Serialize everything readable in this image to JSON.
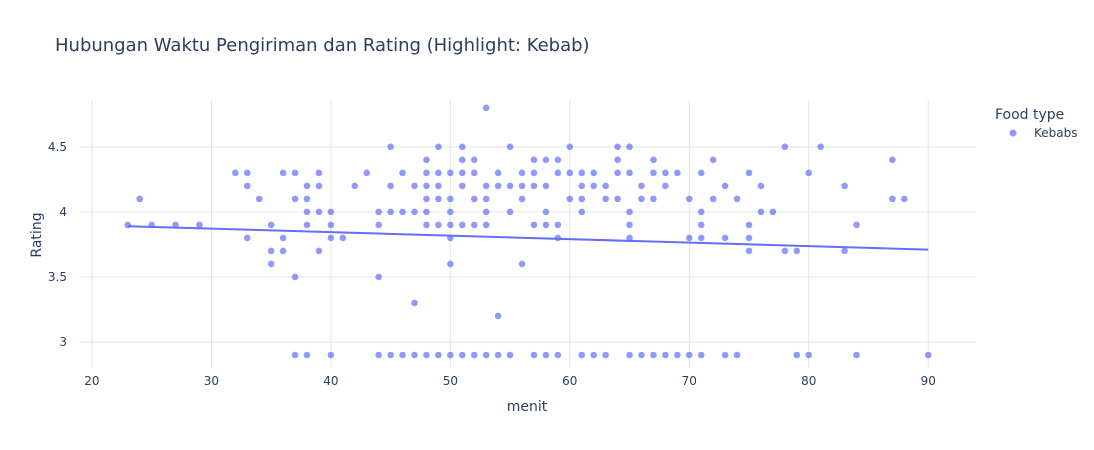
{
  "chart_data": {
    "type": "scatter",
    "title": "Hubungan Waktu Pengiriman dan Rating (Highlight: Kebab)",
    "xlabel": "menit",
    "ylabel": "Rating",
    "xlim": [
      19,
      94
    ],
    "ylim": [
      2.8,
      4.86
    ],
    "xticks": [
      20,
      30,
      40,
      50,
      60,
      70,
      80,
      90
    ],
    "yticks": [
      3,
      3.5,
      4,
      4.5
    ],
    "ytick_labels": [
      "3",
      "3.5",
      "4",
      "4.5"
    ],
    "grid": true,
    "legend": {
      "title": "Food type",
      "position": "top-right"
    },
    "colors": {
      "marker": "#636efa",
      "trend": "#636efa",
      "grid": "#e5e5e5",
      "text": "#2a3f5f"
    },
    "series": [
      {
        "name": "Kebabs",
        "mode": "markers",
        "points": [
          [
            23,
            3.9
          ],
          [
            24,
            4.1
          ],
          [
            25,
            3.9
          ],
          [
            27,
            3.9
          ],
          [
            29,
            3.9
          ],
          [
            32,
            4.3
          ],
          [
            33,
            4.3
          ],
          [
            33,
            4.2
          ],
          [
            33,
            3.8
          ],
          [
            34,
            4.1
          ],
          [
            35,
            3.9
          ],
          [
            35,
            3.7
          ],
          [
            35,
            3.6
          ],
          [
            36,
            4.3
          ],
          [
            36,
            3.8
          ],
          [
            36,
            3.7
          ],
          [
            37,
            4.3
          ],
          [
            37,
            4.1
          ],
          [
            37,
            3.5
          ],
          [
            37,
            2.9
          ],
          [
            38,
            4.2
          ],
          [
            38,
            4.1
          ],
          [
            38,
            4.0
          ],
          [
            38,
            3.9
          ],
          [
            38,
            2.9
          ],
          [
            39,
            4.3
          ],
          [
            39,
            4.2
          ],
          [
            39,
            4.0
          ],
          [
            39,
            3.7
          ],
          [
            40,
            4.0
          ],
          [
            40,
            3.9
          ],
          [
            40,
            3.8
          ],
          [
            40,
            2.9
          ],
          [
            41,
            3.8
          ],
          [
            42,
            4.2
          ],
          [
            43,
            4.3
          ],
          [
            44,
            4.0
          ],
          [
            44,
            3.9
          ],
          [
            44,
            3.5
          ],
          [
            44,
            2.9
          ],
          [
            45,
            4.5
          ],
          [
            45,
            4.2
          ],
          [
            45,
            4.0
          ],
          [
            45,
            2.9
          ],
          [
            46,
            4.3
          ],
          [
            46,
            4.0
          ],
          [
            46,
            2.9
          ],
          [
            47,
            4.2
          ],
          [
            47,
            4.0
          ],
          [
            47,
            3.3
          ],
          [
            47,
            2.9
          ],
          [
            48,
            4.4
          ],
          [
            48,
            4.3
          ],
          [
            48,
            4.2
          ],
          [
            48,
            4.1
          ],
          [
            48,
            4.0
          ],
          [
            48,
            3.9
          ],
          [
            48,
            2.9
          ],
          [
            49,
            4.5
          ],
          [
            49,
            4.3
          ],
          [
            49,
            4.2
          ],
          [
            49,
            4.1
          ],
          [
            49,
            3.9
          ],
          [
            49,
            2.9
          ],
          [
            50,
            4.3
          ],
          [
            50,
            4.1
          ],
          [
            50,
            4.0
          ],
          [
            50,
            3.9
          ],
          [
            50,
            3.8
          ],
          [
            50,
            3.6
          ],
          [
            50,
            2.9
          ],
          [
            51,
            4.5
          ],
          [
            51,
            4.4
          ],
          [
            51,
            4.3
          ],
          [
            51,
            4.2
          ],
          [
            51,
            3.9
          ],
          [
            51,
            2.9
          ],
          [
            52,
            4.4
          ],
          [
            52,
            4.3
          ],
          [
            52,
            4.1
          ],
          [
            52,
            3.9
          ],
          [
            52,
            2.9
          ],
          [
            53,
            4.8
          ],
          [
            53,
            4.2
          ],
          [
            53,
            4.1
          ],
          [
            53,
            4.0
          ],
          [
            53,
            3.9
          ],
          [
            53,
            2.9
          ],
          [
            54,
            4.3
          ],
          [
            54,
            4.2
          ],
          [
            54,
            3.2
          ],
          [
            54,
            2.9
          ],
          [
            55,
            4.5
          ],
          [
            55,
            4.2
          ],
          [
            55,
            4.0
          ],
          [
            55,
            2.9
          ],
          [
            56,
            4.3
          ],
          [
            56,
            4.2
          ],
          [
            56,
            4.1
          ],
          [
            56,
            3.6
          ],
          [
            57,
            4.4
          ],
          [
            57,
            4.3
          ],
          [
            57,
            4.2
          ],
          [
            57,
            3.9
          ],
          [
            57,
            2.9
          ],
          [
            58,
            4.4
          ],
          [
            58,
            4.2
          ],
          [
            58,
            4.0
          ],
          [
            58,
            3.9
          ],
          [
            58,
            2.9
          ],
          [
            59,
            4.4
          ],
          [
            59,
            4.3
          ],
          [
            59,
            3.9
          ],
          [
            59,
            3.8
          ],
          [
            59,
            2.9
          ],
          [
            60,
            4.5
          ],
          [
            60,
            4.3
          ],
          [
            60,
            4.1
          ],
          [
            61,
            4.3
          ],
          [
            61,
            4.2
          ],
          [
            61,
            4.1
          ],
          [
            61,
            4.0
          ],
          [
            61,
            2.9
          ],
          [
            62,
            4.3
          ],
          [
            62,
            4.2
          ],
          [
            62,
            2.9
          ],
          [
            63,
            4.2
          ],
          [
            63,
            4.1
          ],
          [
            63,
            2.9
          ],
          [
            64,
            4.5
          ],
          [
            64,
            4.4
          ],
          [
            64,
            4.3
          ],
          [
            64,
            4.1
          ],
          [
            65,
            4.5
          ],
          [
            65,
            4.3
          ],
          [
            65,
            4.0
          ],
          [
            65,
            3.9
          ],
          [
            65,
            3.8
          ],
          [
            65,
            2.9
          ],
          [
            66,
            4.2
          ],
          [
            66,
            4.1
          ],
          [
            66,
            2.9
          ],
          [
            67,
            4.4
          ],
          [
            67,
            4.3
          ],
          [
            67,
            4.1
          ],
          [
            67,
            2.9
          ],
          [
            68,
            4.3
          ],
          [
            68,
            4.2
          ],
          [
            68,
            2.9
          ],
          [
            69,
            4.3
          ],
          [
            69,
            2.9
          ],
          [
            70,
            4.1
          ],
          [
            70,
            3.8
          ],
          [
            70,
            2.9
          ],
          [
            71,
            4.3
          ],
          [
            71,
            4.0
          ],
          [
            71,
            3.9
          ],
          [
            71,
            3.8
          ],
          [
            71,
            2.9
          ],
          [
            72,
            4.4
          ],
          [
            72,
            4.1
          ],
          [
            73,
            4.2
          ],
          [
            73,
            3.8
          ],
          [
            73,
            2.9
          ],
          [
            74,
            4.1
          ],
          [
            74,
            2.9
          ],
          [
            75,
            4.3
          ],
          [
            75,
            3.9
          ],
          [
            75,
            3.8
          ],
          [
            75,
            3.7
          ],
          [
            76,
            4.2
          ],
          [
            76,
            4.0
          ],
          [
            77,
            4.0
          ],
          [
            78,
            4.5
          ],
          [
            78,
            3.7
          ],
          [
            79,
            3.7
          ],
          [
            79,
            2.9
          ],
          [
            80,
            4.3
          ],
          [
            80,
            2.9
          ],
          [
            81,
            4.5
          ],
          [
            83,
            4.2
          ],
          [
            83,
            3.7
          ],
          [
            84,
            3.9
          ],
          [
            84,
            2.9
          ],
          [
            87,
            4.4
          ],
          [
            87,
            4.1
          ],
          [
            88,
            4.1
          ],
          [
            90,
            2.9
          ]
        ]
      },
      {
        "mode": "lines",
        "type": "trendline",
        "points": [
          [
            23,
            3.89
          ],
          [
            90,
            3.71
          ]
        ]
      }
    ]
  }
}
